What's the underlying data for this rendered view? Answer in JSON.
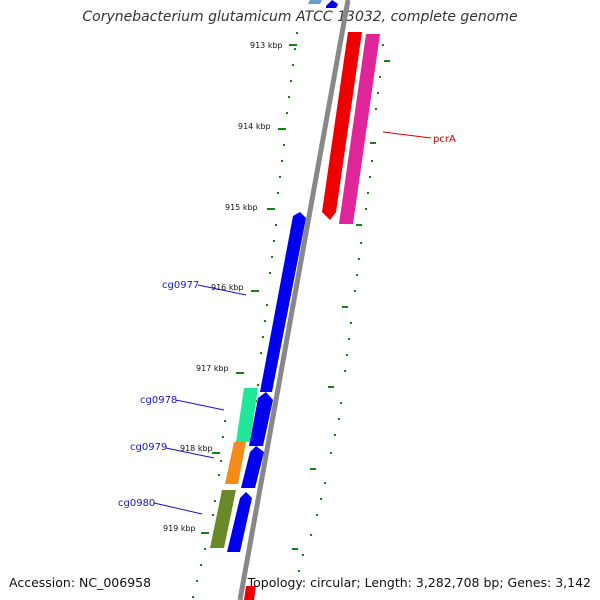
{
  "title": "Corynebacterium glutamicum ATCC 13032, complete genome",
  "footer": {
    "accession": "Accession: NC_006958",
    "summary": "Topology: circular; Length: 3,282,708 bp; Genes: 3,142"
  },
  "colors": {
    "backbone": "#888888",
    "ticks": "#1a7f1a",
    "forward_gene": "#0000ee",
    "label_blue": "#1515c8",
    "label_red": "#d40000"
  },
  "ticks": [
    {
      "label": "913 kbp"
    },
    {
      "label": "914 kbp"
    },
    {
      "label": "915 kbp"
    },
    {
      "label": "916 kbp"
    },
    {
      "label": "917 kbp"
    },
    {
      "label": "918 kbp"
    },
    {
      "label": "919 kbp"
    }
  ],
  "gene_labels": [
    {
      "label": "pcrA"
    },
    {
      "label": "cg0977"
    },
    {
      "label": "cg0978"
    },
    {
      "label": "cg0979"
    },
    {
      "label": "cg0980"
    }
  ]
}
